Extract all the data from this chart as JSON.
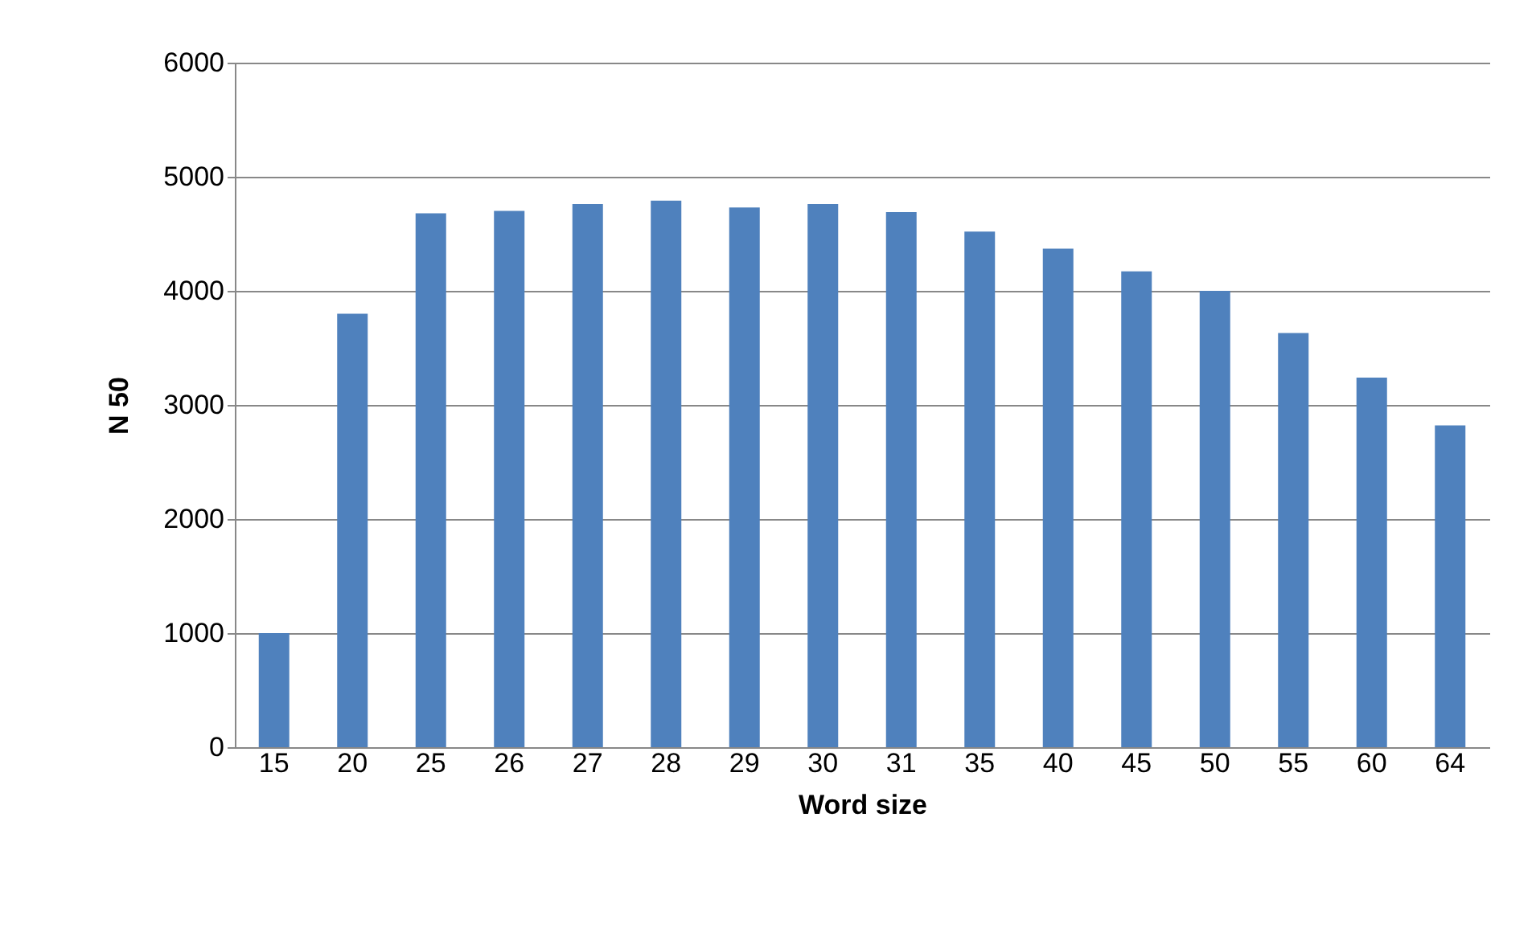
{
  "chart_data": {
    "type": "bar",
    "xlabel": "Word size",
    "ylabel": "N 50",
    "categories": [
      "15",
      "20",
      "25",
      "26",
      "27",
      "28",
      "29",
      "30",
      "31",
      "35",
      "40",
      "45",
      "50",
      "55",
      "60",
      "64"
    ],
    "values": [
      1000,
      3800,
      4680,
      4700,
      4760,
      4790,
      4730,
      4760,
      4690,
      4520,
      4370,
      4170,
      4000,
      3630,
      3240,
      2820
    ],
    "color": "#4f81bd",
    "ylim": [
      0,
      6000
    ],
    "yticks": [
      0,
      1000,
      2000,
      3000,
      4000,
      5000,
      6000
    ],
    "grid": "y"
  }
}
